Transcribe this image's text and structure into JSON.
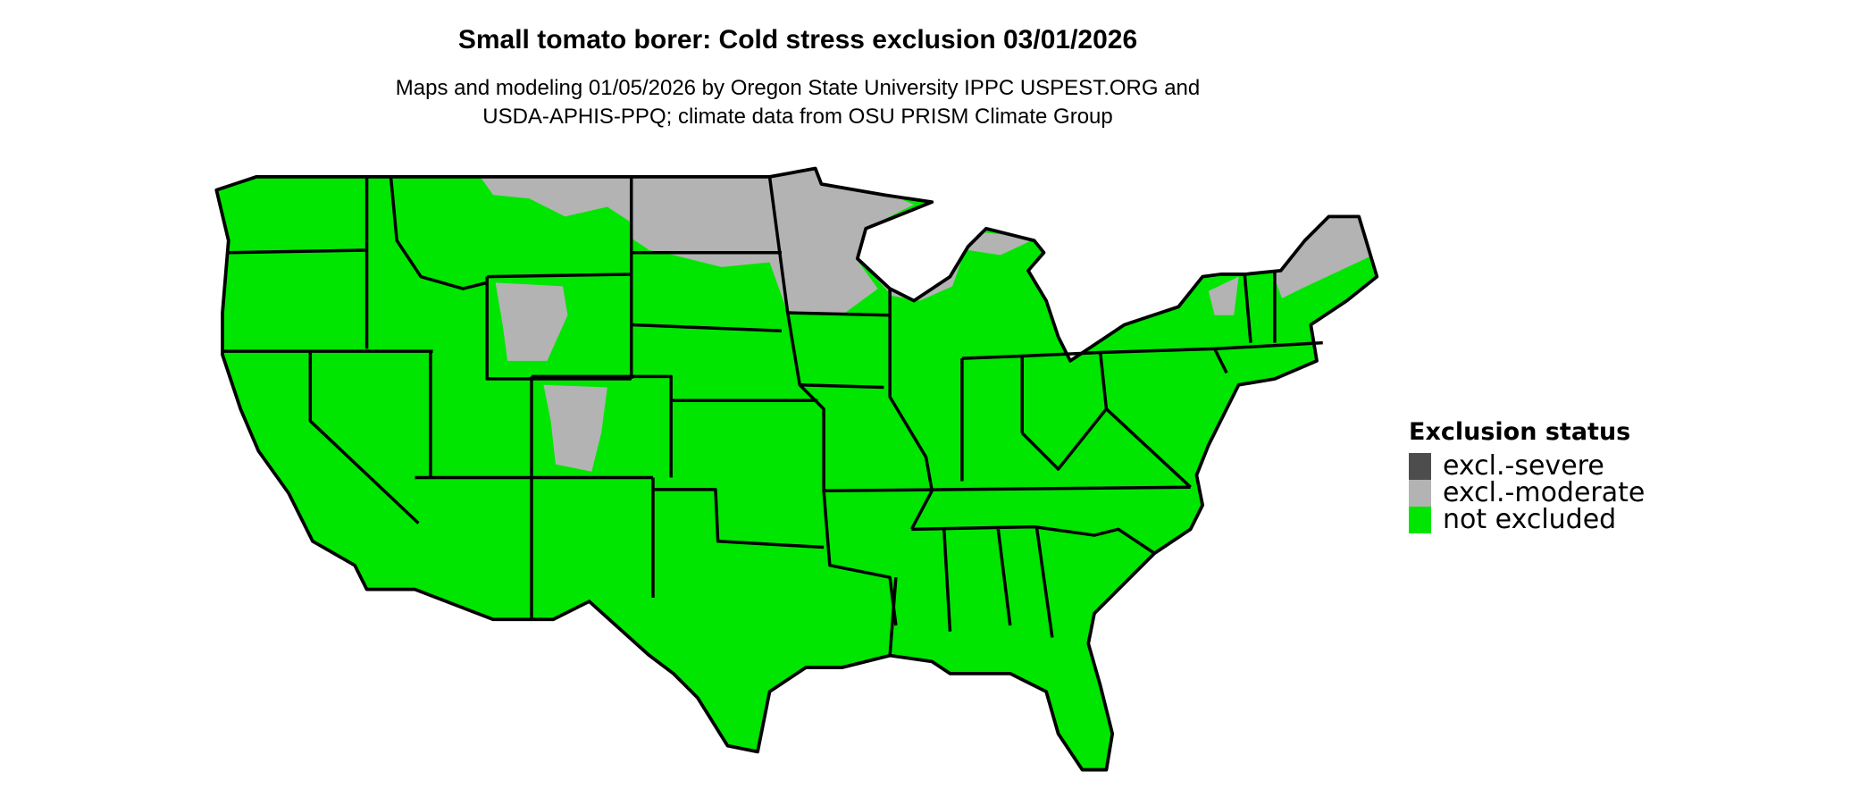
{
  "title": "Small tomato borer: Cold stress exclusion 03/01/2026",
  "subtitle_lines": [
    "Maps and modeling 01/05/2026 by Oregon State University IPPC USPEST.ORG and",
    "USDA-APHIS-PPQ; climate data from OSU PRISM Climate Group"
  ],
  "legend": {
    "title": "Exclusion status",
    "items": [
      {
        "label": "excl.-severe",
        "color": "#4d4d4d"
      },
      {
        "label": "excl.-moderate",
        "color": "#b3b3b3"
      },
      {
        "label": "not excluded",
        "color": "#00e600"
      }
    ]
  },
  "colors": {
    "state_border": "#000000"
  }
}
